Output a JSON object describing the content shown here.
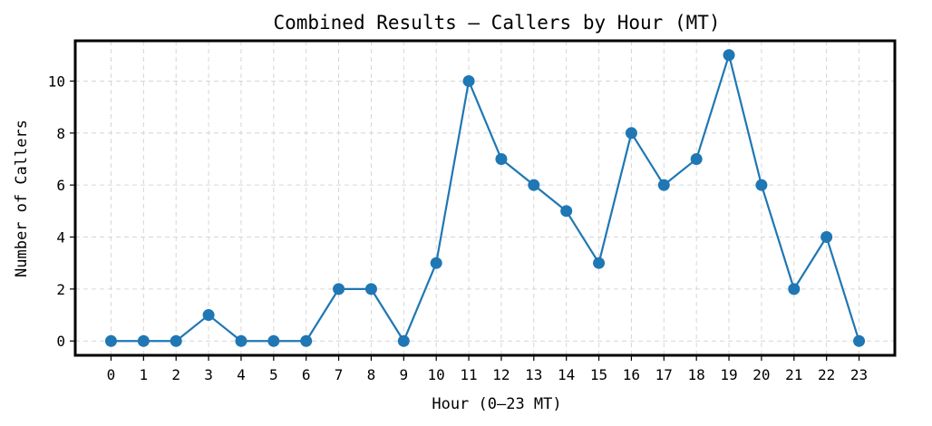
{
  "chart_data": {
    "type": "line",
    "title": "Combined Results — Callers by Hour (MT)",
    "xlabel": "Hour (0–23 MT)",
    "ylabel": "Number of Callers",
    "x": [
      0,
      1,
      2,
      3,
      4,
      5,
      6,
      7,
      8,
      9,
      10,
      11,
      12,
      13,
      14,
      15,
      16,
      17,
      18,
      19,
      20,
      21,
      22,
      23
    ],
    "series": [
      {
        "values": [
          0,
          0,
          0,
          1,
          0,
          0,
          0,
          2,
          2,
          0,
          3,
          10,
          7,
          6,
          5,
          3,
          8,
          6,
          7,
          11,
          6,
          2,
          4,
          0
        ]
      }
    ],
    "xlim": [
      -1.1,
      24.1
    ],
    "ylim": [
      -0.55,
      11.55
    ],
    "yticks": [
      0,
      2,
      4,
      6,
      8,
      10
    ],
    "grid": true,
    "line_color": "#1f77b4",
    "marker": "circle"
  }
}
